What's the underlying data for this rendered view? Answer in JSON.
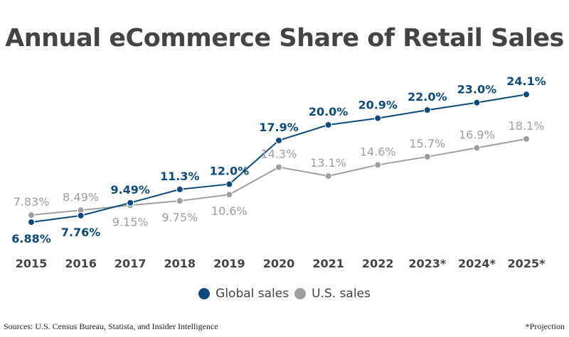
{
  "chart_data": {
    "type": "line",
    "title": "Annual eCommerce Share of Retail Sales",
    "categories": [
      "2015",
      "2016",
      "2017",
      "2018",
      "2019",
      "2020",
      "2021",
      "2022",
      "2023*",
      "2024*",
      "2025*"
    ],
    "series": [
      {
        "name": "Global sales",
        "color": "#0b4a7a",
        "values": [
          6.88,
          7.76,
          9.49,
          11.3,
          12.0,
          17.9,
          20.0,
          20.9,
          22.0,
          23.0,
          24.1
        ],
        "labels": [
          "6.88%",
          "7.76%",
          "9.49%",
          "11.3%",
          "12.0%",
          "17.9%",
          "20.0%",
          "20.9%",
          "22.0%",
          "23.0%",
          "24.1%"
        ]
      },
      {
        "name": "U.S. sales",
        "color": "#9e9e9e",
        "values": [
          7.83,
          8.49,
          9.15,
          9.75,
          10.6,
          14.3,
          13.1,
          14.6,
          15.7,
          16.9,
          18.1
        ],
        "labels": [
          "7.83%",
          "8.49%",
          "9.15%",
          "9.75%",
          "10.6%",
          "14.3%",
          "13.1%",
          "14.6%",
          "15.7%",
          "16.9%",
          "18.1%"
        ]
      }
    ],
    "grid": false,
    "legend": "bottom"
  },
  "footer": {
    "source": "Sources: U.S. Census Bureau, Statista, and Insider Intelligence",
    "note": "*Projection"
  }
}
